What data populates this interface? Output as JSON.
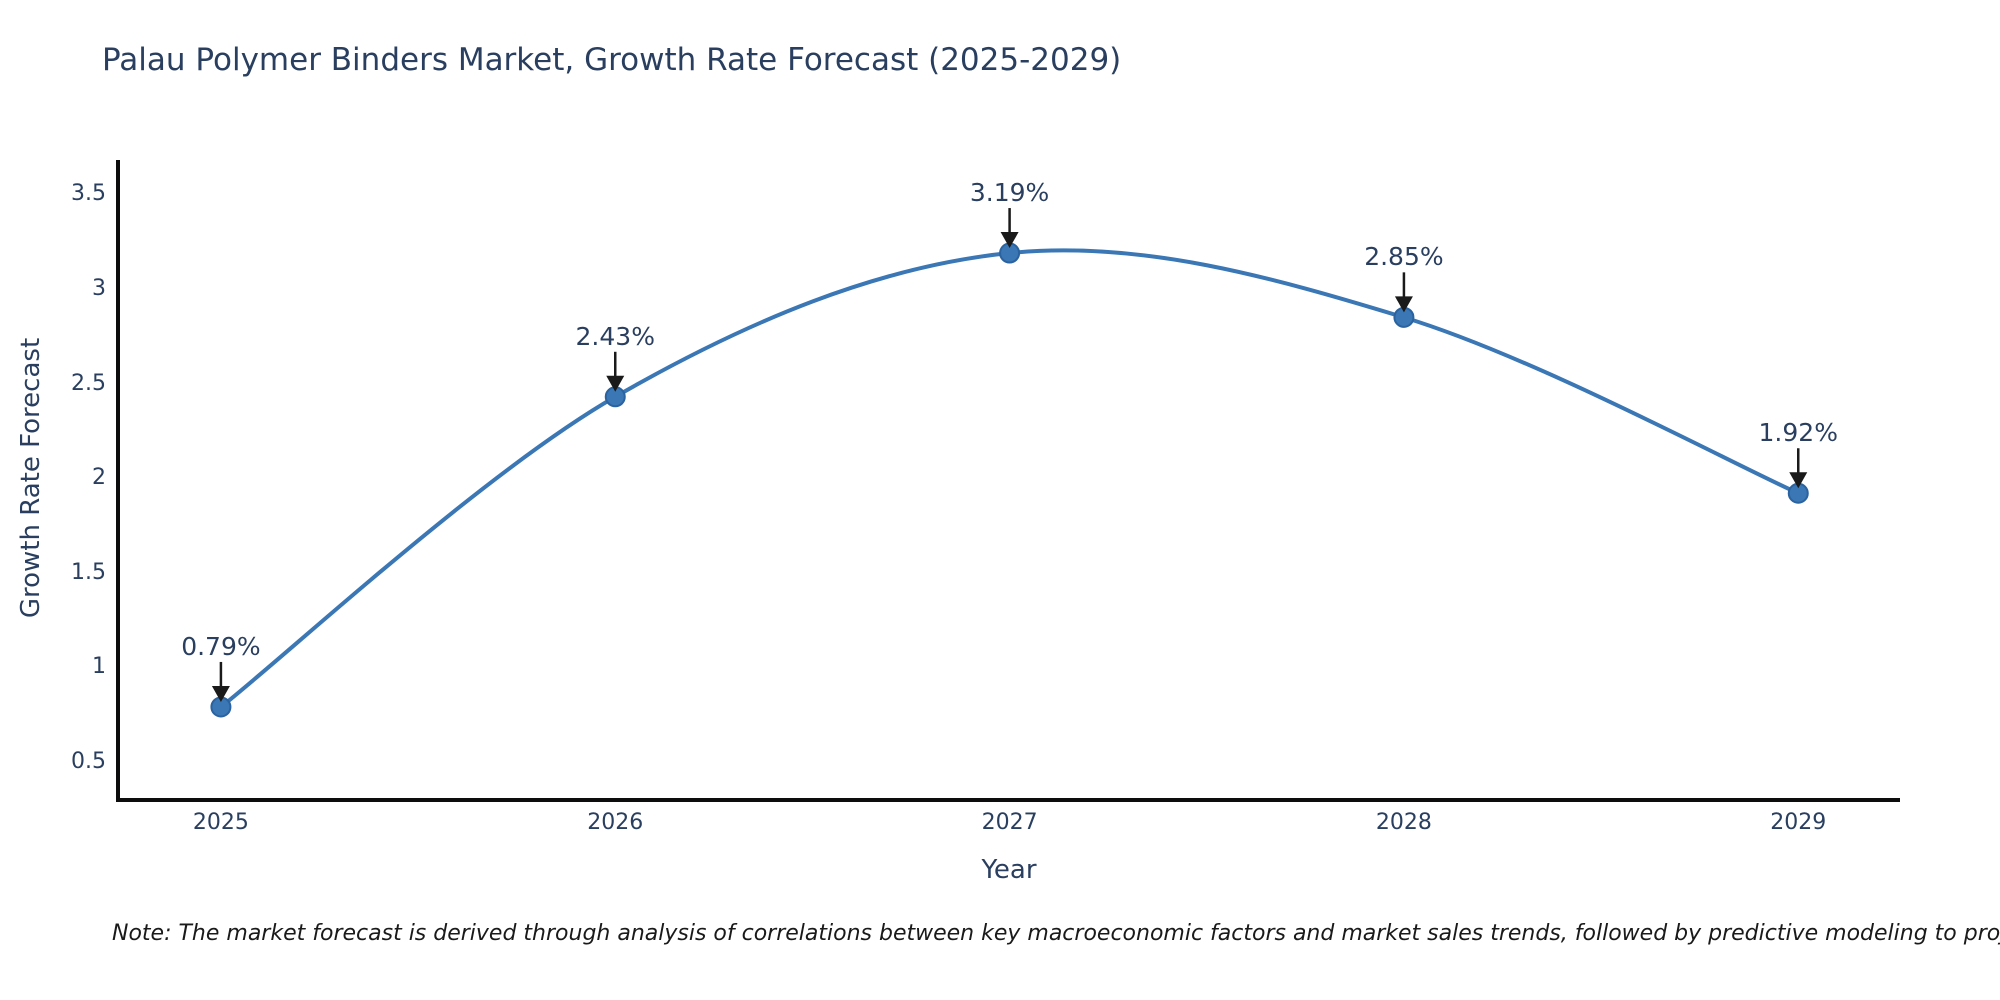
{
  "title": "Palau Polymer Binders Market, Growth Rate Forecast (2025-2029)",
  "note": "Note: The market forecast is derived through analysis of correlations between key macroeconomic factors and market sales trends, followed by predictive modeling to project future sales",
  "chart_data": {
    "type": "line",
    "title": "Palau Polymer Binders Market, Growth Rate Forecast (2025-2029)",
    "xlabel": "Year",
    "ylabel": "Growth Rate Forecast",
    "x": [
      2025,
      2026,
      2027,
      2028,
      2029
    ],
    "series": [
      {
        "name": "Growth Rate Forecast",
        "values": [
          0.79,
          2.43,
          3.19,
          2.85,
          1.92
        ]
      }
    ],
    "point_labels": [
      "0.79%",
      "2.43%",
      "3.19%",
      "2.85%",
      "1.92%"
    ],
    "xtick_labels": [
      "2025",
      "2026",
      "2027",
      "2028",
      "2029"
    ],
    "ytick_values": [
      0.5,
      1,
      1.5,
      2,
      2.5,
      3,
      3.5
    ],
    "ytick_labels": [
      "0.5",
      "1",
      "1.5",
      "2",
      "2.5",
      "3",
      "3.5"
    ],
    "xlim": [
      2024.739,
      2029.258
    ],
    "ylim": [
      0.298,
      3.682
    ],
    "grid": false,
    "legend_position": "none",
    "curve": "spline",
    "annotation_style": "arrow-down-to-point",
    "line_color": "#3a77b4",
    "marker_color": "#3a77b4",
    "marker_edge_color": "#2a639f",
    "axis_color": "#0d0d0d",
    "arrow_color": "#1a1a1a",
    "text_color": "#2a3f5f"
  }
}
